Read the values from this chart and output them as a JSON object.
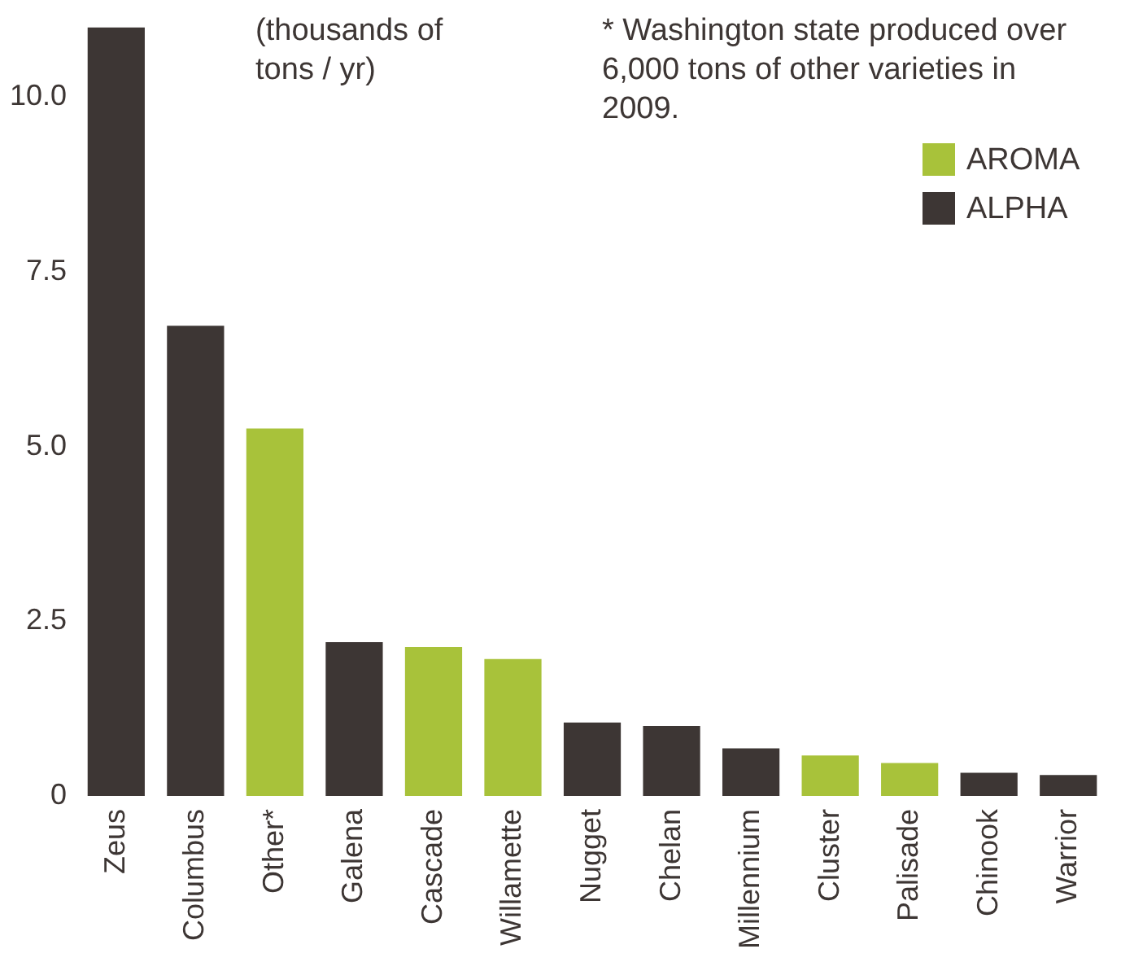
{
  "chart_data": {
    "type": "bar",
    "categories": [
      "Zeus",
      "Columbus",
      "Other*",
      "Galena",
      "Cascade",
      "Willamette",
      "Nugget",
      "Chelan",
      "Millennium",
      "Cluster",
      "Palisade",
      "Chinook",
      "Warrior"
    ],
    "series": [
      {
        "name": "AROMA",
        "color": "#a8c23a",
        "values": [
          null,
          null,
          5.26,
          null,
          2.13,
          1.96,
          null,
          null,
          null,
          0.58,
          0.47,
          null,
          null
        ]
      },
      {
        "name": "ALPHA",
        "color": "#3d3634",
        "values": [
          11.0,
          6.73,
          null,
          2.2,
          null,
          null,
          1.05,
          1.0,
          0.68,
          null,
          null,
          0.33,
          0.3
        ]
      }
    ],
    "ylim": [
      0,
      11
    ],
    "yticks": [
      0,
      {
        "value": 2.5,
        "label": "2.5"
      },
      {
        "value": 5,
        "label": "5.0"
      },
      {
        "value": 7.5,
        "label": "7.5"
      },
      {
        "value": 10,
        "label": "10.0"
      }
    ],
    "grid": false,
    "legend": "top right",
    "annotations": [
      "(thousands of tons / yr)",
      "* Washington state produced over 6,000 tons of other varieties in 2009."
    ]
  }
}
